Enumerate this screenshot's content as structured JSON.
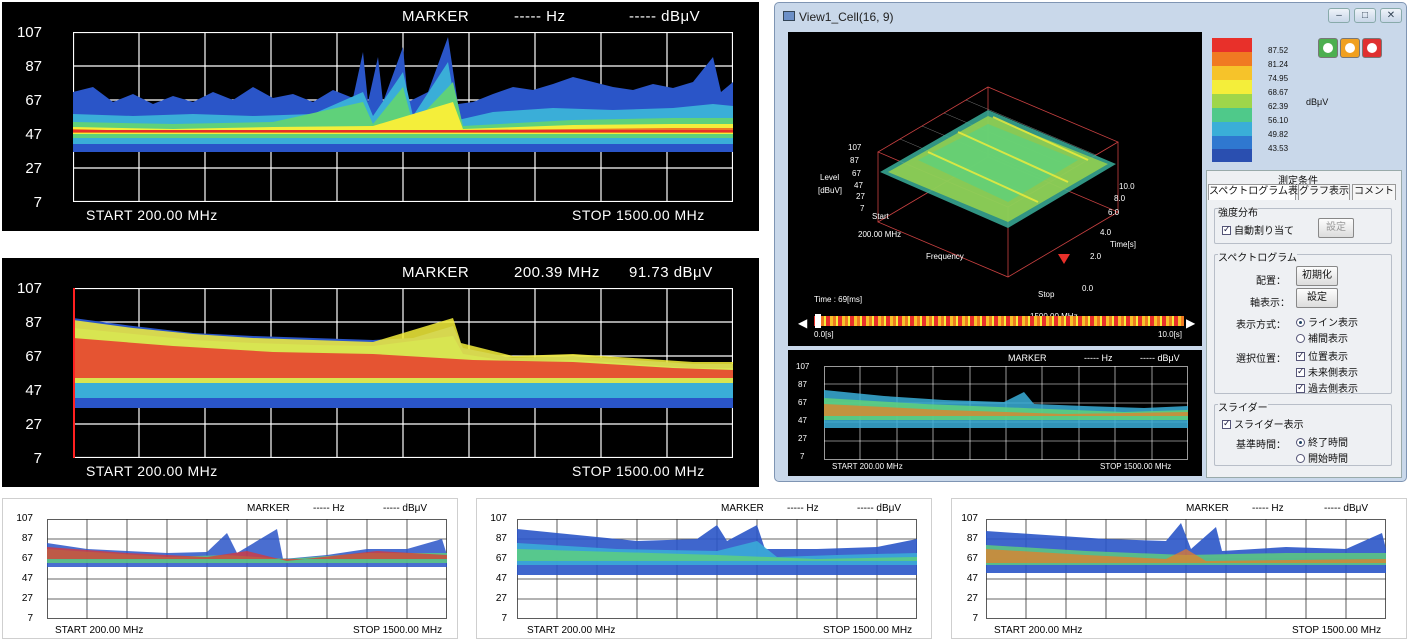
{
  "panel1": {
    "marker_label": "MARKER",
    "marker_freq": "----- Hz",
    "marker_level": "----- dBμV",
    "yticks": [
      "107",
      "87",
      "67",
      "47",
      "27",
      "7"
    ],
    "start": "START   200.00 MHz",
    "stop": "STOP   1500.00 MHz"
  },
  "panel2": {
    "marker_label": "MARKER",
    "marker_freq": "200.39 MHz",
    "marker_level": "91.73 dBμV",
    "yticks": [
      "107",
      "87",
      "67",
      "47",
      "27",
      "7"
    ],
    "start": "START   200.00 MHz",
    "stop": "STOP   1500.00 MHz"
  },
  "panel3": {
    "marker_label": "MARKER",
    "marker_freq": "----- Hz",
    "marker_level": "----- dBμV",
    "yticks": [
      "107",
      "87",
      "67",
      "47",
      "27",
      "7"
    ],
    "start": "START   200.00 MHz",
    "stop": "STOP   1500.00 MHz"
  },
  "panel4": {
    "marker_label": "MARKER",
    "marker_freq": "----- Hz",
    "marker_level": "----- dBμV",
    "yticks": [
      "107",
      "87",
      "67",
      "47",
      "27",
      "7"
    ],
    "start": "START   200.00 MHz",
    "stop": "STOP   1500.00 MHz"
  },
  "panel5": {
    "marker_label": "MARKER",
    "marker_freq": "----- Hz",
    "marker_level": "----- dBμV",
    "yticks": [
      "107",
      "87",
      "67",
      "47",
      "27",
      "7"
    ],
    "start": "START   200.00 MHz",
    "stop": "STOP   1500.00 MHz"
  },
  "window": {
    "title": "View1_Cell(16, 9)",
    "minimize": "–",
    "maximize": "□",
    "close": "✕",
    "plot3d": {
      "level_label": "Level",
      "level_unit": "[dBuV]",
      "level_ticks": [
        "107",
        "87",
        "67",
        "47",
        "27",
        "7"
      ],
      "start_label": "Start",
      "start_freq": "200.00 MHz",
      "frequency_label": "Frequency",
      "stop_label": "Stop",
      "stop_freq": "1500.00 MHz",
      "time_label": "Time[s]",
      "time_ticks": [
        "10.0",
        "8.0",
        "6.0",
        "4.0",
        "2.0",
        "0.0"
      ],
      "time_readout": "Time : 69[ms]",
      "slider_start": "0.0[s]",
      "slider_end": "10.0[s]"
    },
    "mini_spec": {
      "marker_label": "MARKER",
      "marker_freq": "----- Hz",
      "marker_level": "----- dBμV",
      "yticks": [
        "107",
        "87",
        "67",
        "47",
        "27",
        "7"
      ],
      "start": "START   200.00 MHz",
      "stop": "STOP   1500.00 MHz"
    },
    "color_scale": {
      "values": [
        "87.52",
        "81.24",
        "74.95",
        "68.67",
        "62.39",
        "56.10",
        "49.82",
        "43.53"
      ],
      "unit": "dBμV",
      "colors": [
        "#e8302a",
        "#f07a22",
        "#f6c32a",
        "#f4ee3a",
        "#9fd64a",
        "#4fc98a",
        "#3aaed8",
        "#2f78d0",
        "#2a4fb0"
      ]
    },
    "controls": {
      "play_color": "#4caf50",
      "pause_color": "#f0a020",
      "stop_color": "#e03030"
    },
    "side": {
      "conditions_label": "測定条件",
      "tabs": [
        "スペクトログラム表示",
        "グラフ表示",
        "コメント"
      ],
      "intensity_group": "強度分布",
      "auto_assign": "自動割り当て",
      "setting_btn_disabled": "設定",
      "spectrogram_group": "スペクトログラム",
      "layout_label": "配置：",
      "init_btn": "初期化",
      "axis_label": "軸表示：",
      "axis_btn": "設定",
      "display_mode_label": "表示方式：",
      "line_display": "ライン表示",
      "interp_display": "補間表示",
      "selection_label": "選択位置：",
      "pos_display": "位置表示",
      "future_display": "未来側表示",
      "past_display": "過去側表示",
      "slider_group": "スライダー",
      "slider_display": "スライダー表示",
      "ref_time_label": "基準時間：",
      "end_time": "終了時間",
      "start_time": "開始時間"
    }
  }
}
